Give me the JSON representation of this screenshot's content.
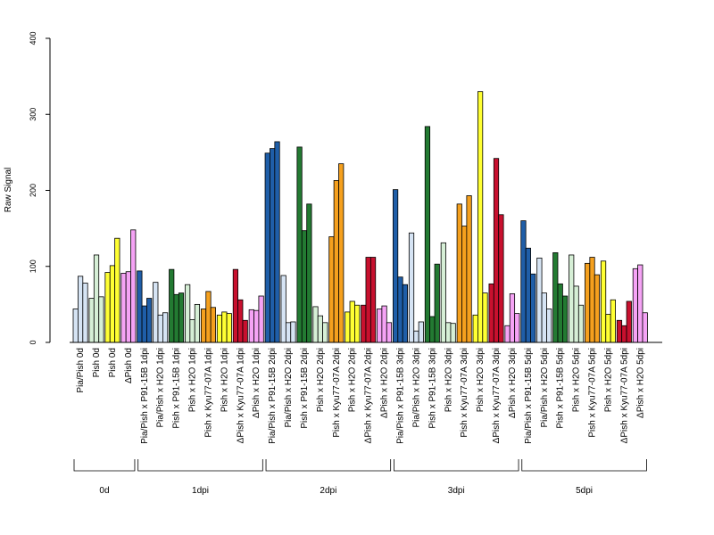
{
  "chart_data": {
    "type": "bar",
    "title": "",
    "xlabel": "",
    "ylabel": "Raw Signal",
    "ylim": [
      0,
      400
    ],
    "yticks": [
      0,
      100,
      200,
      300,
      400
    ],
    "grid": false,
    "categories": [
      {
        "label": "Pia/Pish 0d",
        "color": "#d6e4f4",
        "values": [
          44,
          87,
          78
        ]
      },
      {
        "label": "Pish 0d",
        "color": "#d6efd6",
        "values": [
          58,
          115,
          60
        ]
      },
      {
        "label": "Pish 0d",
        "color": "#ffff33",
        "values": [
          92,
          101,
          137
        ]
      },
      {
        "label": "ΔPish 0d",
        "color": "#f5a3f5",
        "values": [
          91,
          93,
          148
        ]
      },
      {
        "label": "Pia/Pish x P91-15B 1dpi",
        "color": "#1f5ea8",
        "values": [
          94,
          48,
          58
        ]
      },
      {
        "label": "Pia/Pish x H2O 1dpi",
        "color": "#d6e4f4",
        "values": [
          79,
          36,
          39
        ]
      },
      {
        "label": "Pish x P91-15B 1dpi",
        "color": "#237a32",
        "values": [
          96,
          63,
          65
        ]
      },
      {
        "label": "Pish x H2O 1dpi",
        "color": "#d6efd6",
        "values": [
          76,
          30,
          50
        ]
      },
      {
        "label": "Pish x Kyu77-07A 1dpi",
        "color": "#f5a01e",
        "values": [
          44,
          67,
          46
        ]
      },
      {
        "label": "Pish x H2O 1dpi",
        "color": "#ffff33",
        "values": [
          36,
          40,
          38
        ]
      },
      {
        "label": "ΔPish x Kyu77-07A 1dpi",
        "color": "#c8102e",
        "values": [
          96,
          56,
          29
        ]
      },
      {
        "label": "ΔPish x H2O 1dpi",
        "color": "#f5a3f5",
        "values": [
          43,
          42,
          61
        ]
      },
      {
        "label": "Pia/Pish x P91-15B 2dpi",
        "color": "#1f5ea8",
        "values": [
          249,
          255,
          264
        ]
      },
      {
        "label": "Pia/Pish x H2O 2dpi",
        "color": "#d6e4f4",
        "values": [
          88,
          26,
          27
        ]
      },
      {
        "label": "Pish x P91-15B 2dpi",
        "color": "#237a32",
        "values": [
          257,
          147,
          182
        ]
      },
      {
        "label": "Pish x H2O 2dpi",
        "color": "#d6efd6",
        "values": [
          47,
          35,
          26
        ]
      },
      {
        "label": "Pish x Kyu77-07A 2dpi",
        "color": "#f5a01e",
        "values": [
          139,
          213,
          235
        ]
      },
      {
        "label": "Pish x H2O 2dpi",
        "color": "#ffff33",
        "values": [
          40,
          54,
          49
        ]
      },
      {
        "label": "ΔPish x Kyu77-07A 2dpi",
        "color": "#c8102e",
        "values": [
          49,
          112,
          112
        ]
      },
      {
        "label": "ΔPish x H2O 2dpi",
        "color": "#f5a3f5",
        "values": [
          44,
          48,
          26
        ]
      },
      {
        "label": "Pia/Pish x P91-15B 3dpi",
        "color": "#1f5ea8",
        "values": [
          201,
          86,
          76
        ]
      },
      {
        "label": "Pia/Pish x H2O 3dpi",
        "color": "#d6e4f4",
        "values": [
          144,
          15,
          27
        ]
      },
      {
        "label": "Pish x P91-15B 3dpi",
        "color": "#237a32",
        "values": [
          284,
          34,
          103
        ]
      },
      {
        "label": "Pish x H2O 3dpi",
        "color": "#d6efd6",
        "values": [
          131,
          26,
          25
        ]
      },
      {
        "label": "Pish x Kyu77-07A 3dpi",
        "color": "#f5a01e",
        "values": [
          182,
          153,
          193
        ]
      },
      {
        "label": "Pish x H2O 3dpi",
        "color": "#ffff33",
        "values": [
          36,
          330,
          65
        ]
      },
      {
        "label": "ΔPish x Kyu77-07A 3dpi",
        "color": "#c8102e",
        "values": [
          77,
          242,
          168
        ]
      },
      {
        "label": "ΔPish x H2O 3dpi",
        "color": "#f5a3f5",
        "values": [
          22,
          64,
          38
        ]
      },
      {
        "label": "Pia/Pish x P91-15B 5dpi",
        "color": "#1f5ea8",
        "values": [
          160,
          124,
          90
        ]
      },
      {
        "label": "Pia/Pish x H2O 5dpi",
        "color": "#d6e4f4",
        "values": [
          111,
          65,
          44
        ]
      },
      {
        "label": "Pish x P91-15B 5dpi",
        "color": "#237a32",
        "values": [
          118,
          77,
          61
        ]
      },
      {
        "label": "Pish x H2O 5dpi",
        "color": "#d6efd6",
        "values": [
          115,
          74,
          49
        ]
      },
      {
        "label": "Pish x Kyu77-07A 5dpi",
        "color": "#f5a01e",
        "values": [
          104,
          112,
          89
        ]
      },
      {
        "label": "Pish x H2O 5dpi",
        "color": "#ffff33",
        "values": [
          107,
          37,
          56
        ]
      },
      {
        "label": "ΔPish x Kyu77-07A 5dpi",
        "color": "#c8102e",
        "values": [
          29,
          22,
          54
        ]
      },
      {
        "label": "ΔPish x H2O 5dpi",
        "color": "#f5a3f5",
        "values": [
          97,
          102,
          39
        ]
      }
    ],
    "groups": [
      {
        "label": "0d",
        "start": 0,
        "end": 3
      },
      {
        "label": "1dpi",
        "start": 4,
        "end": 11
      },
      {
        "label": "2dpi",
        "start": 12,
        "end": 19
      },
      {
        "label": "3dpi",
        "start": 20,
        "end": 27
      },
      {
        "label": "5dpi",
        "start": 28,
        "end": 35
      }
    ]
  }
}
